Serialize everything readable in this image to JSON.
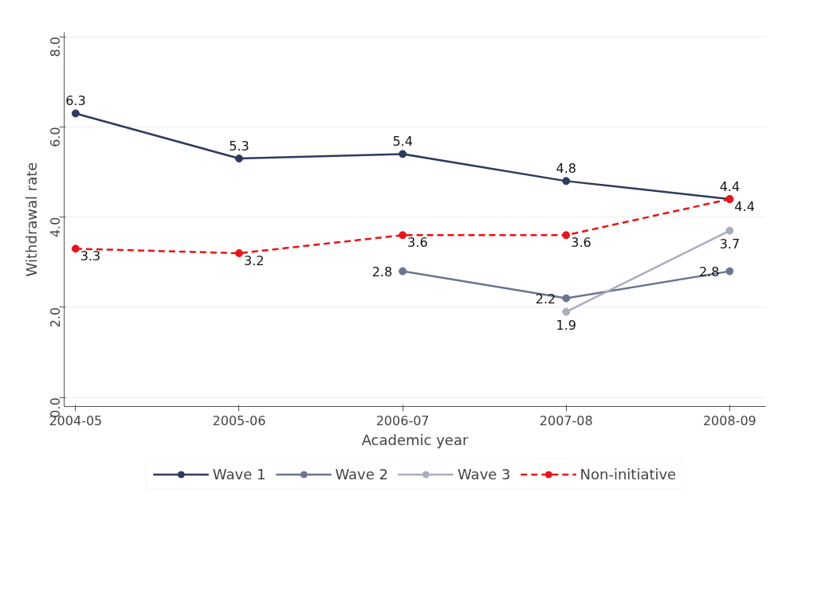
{
  "chart_data": {
    "type": "line",
    "xlabel": "Academic year",
    "ylabel": "Withdrawal rate",
    "categories": [
      "2004-05",
      "2005-06",
      "2006-07",
      "2007-08",
      "2008-09"
    ],
    "series": [
      {
        "name": "Wave 1",
        "color": "#2f3b5e",
        "values": [
          6.3,
          5.3,
          5.4,
          4.8,
          4.4
        ]
      },
      {
        "name": "Wave 2",
        "color": "#6b7491",
        "values": [
          null,
          null,
          2.8,
          2.2,
          2.8
        ]
      },
      {
        "name": "Wave 3",
        "color": "#a9aebd",
        "values": [
          null,
          null,
          null,
          1.9,
          3.7
        ]
      },
      {
        "name": "Non-initiative",
        "color": "#e8141a",
        "line_style": "dashed",
        "values": [
          3.3,
          3.2,
          3.6,
          3.6,
          4.4
        ]
      }
    ],
    "ylim": [
      -0.2,
      8.1
    ],
    "yticks": [
      {
        "value": 0,
        "label": "0.0"
      },
      {
        "value": 2,
        "label": "2.0"
      },
      {
        "value": 4,
        "label": "4.0"
      },
      {
        "value": 6,
        "label": "6.0"
      },
      {
        "value": 8,
        "label": "8.0"
      }
    ],
    "grid": "y",
    "legend": "bottom",
    "marker": "circle",
    "data_labels": true
  }
}
